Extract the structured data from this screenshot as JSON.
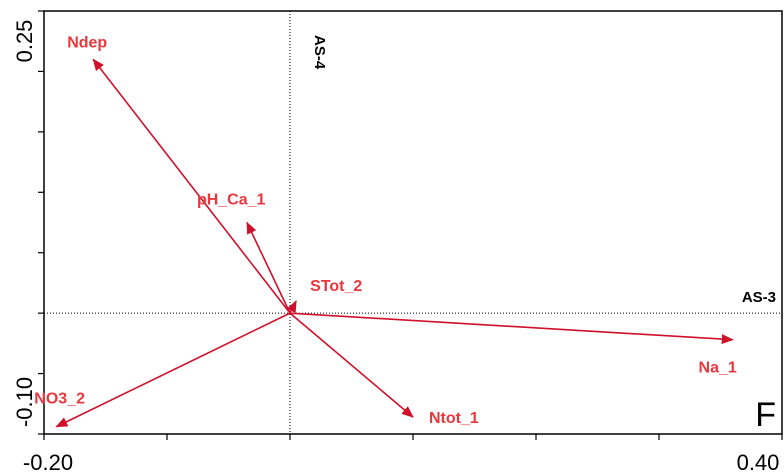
{
  "chart_data": {
    "type": "biplot",
    "panel_label": "F",
    "xlim": [
      -0.2,
      0.4
    ],
    "ylim": [
      -0.1,
      0.25
    ],
    "x_ticks": [
      -0.2,
      -0.1,
      0,
      0.1,
      0.2,
      0.3,
      0.4
    ],
    "y_ticks": [
      -0.1,
      -0.05,
      0,
      0.05,
      0.1,
      0.15,
      0.2,
      0.25
    ],
    "x_tick_labels": [
      "-0.20",
      "0.40"
    ],
    "y_tick_labels": [
      "-0.10",
      "0.25"
    ],
    "x_axis_name": "AS-3",
    "y_axis_name": "AS-4",
    "vectors": [
      {
        "label": "Ndep",
        "x": -0.16,
        "y": 0.21
      },
      {
        "label": "pH_Ca_1",
        "x": -0.035,
        "y": 0.075
      },
      {
        "label": "STot_2",
        "x": 0.005,
        "y": 0.01
      },
      {
        "label": "Na_1",
        "x": 0.36,
        "y": -0.022
      },
      {
        "label": "NO3_2",
        "x": -0.19,
        "y": -0.094
      },
      {
        "label": "Ntot_1",
        "x": 0.1,
        "y": -0.086
      }
    ],
    "colors": {
      "vector": "#d0112b",
      "label": "#e8383d"
    }
  }
}
